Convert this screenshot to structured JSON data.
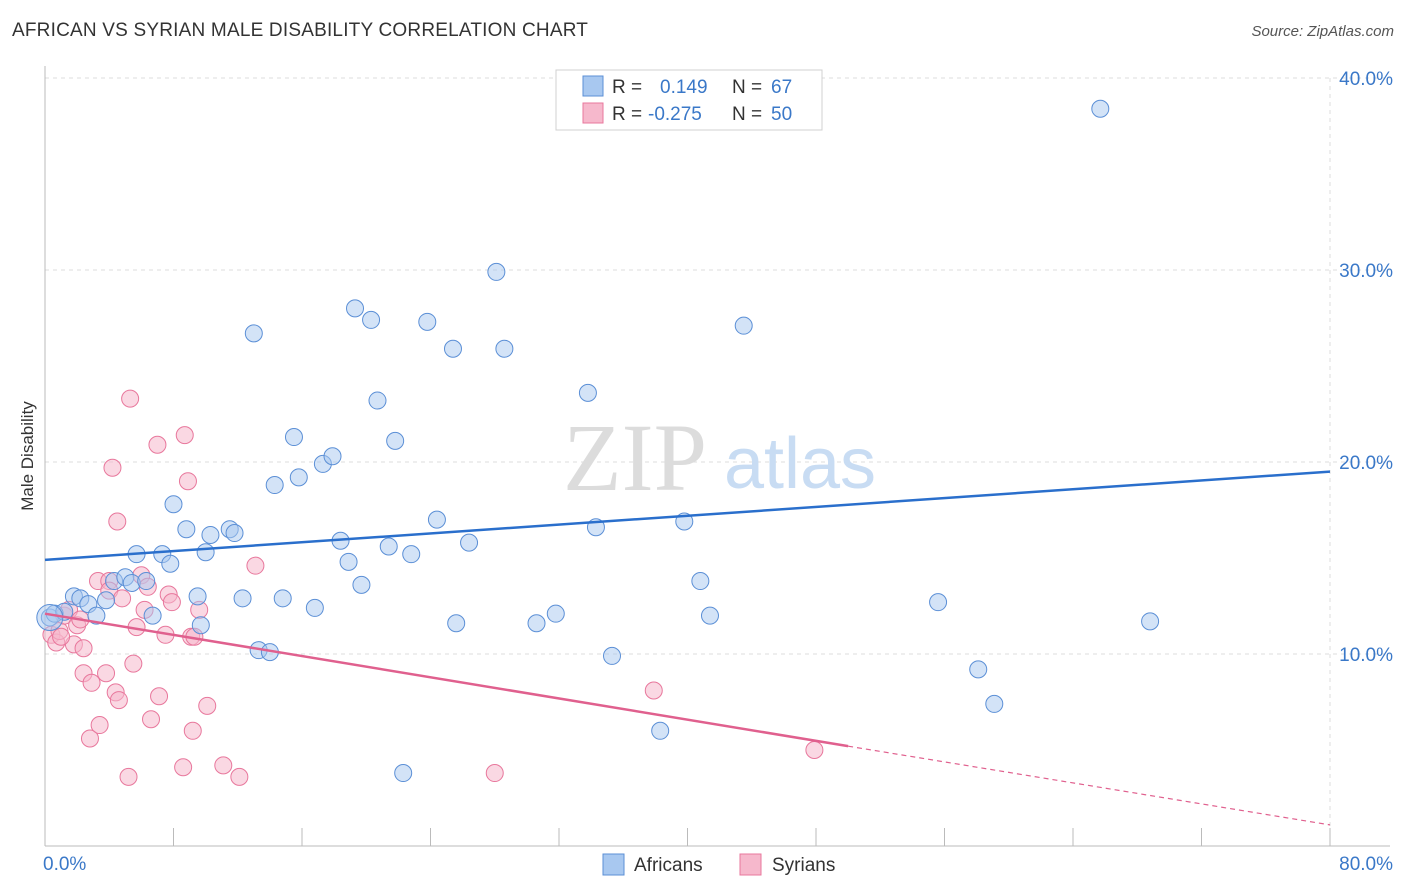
{
  "title": "AFRICAN VS SYRIAN MALE DISABILITY CORRELATION CHART",
  "source": "Source: ZipAtlas.com",
  "watermark": {
    "zip": "ZIP",
    "atlas": "atlas"
  },
  "legend_stats": [
    {
      "r_label": "R =",
      "r_value": "0.149",
      "n_label": "N =",
      "n_value": "67"
    },
    {
      "r_label": "R =",
      "r_value": "-0.275",
      "n_label": "N =",
      "n_value": "50"
    }
  ],
  "colors": {
    "africans_fill": "#a8c8f0",
    "africans_stroke": "#5b8fd6",
    "africans_line": "#2a6fcc",
    "syrians_fill": "#f6b8cc",
    "syrians_stroke": "#e8779c",
    "syrians_line": "#e0608e",
    "axis_text": "#3a78c8",
    "grid": "#dddddd"
  },
  "chart_data": {
    "type": "scatter",
    "title": "AFRICAN VS SYRIAN MALE DISABILITY CORRELATION CHART",
    "xlabel": "",
    "ylabel": "Male Disability",
    "xlim": [
      0,
      80
    ],
    "ylim": [
      0,
      40
    ],
    "x_tick_labels": [
      "0.0%",
      "80.0%"
    ],
    "y_ticks": [
      10,
      20,
      30,
      40
    ],
    "y_tick_labels": [
      "10.0%",
      "20.0%",
      "30.0%",
      "40.0%"
    ],
    "grid": true,
    "legend_position": "bottom-center",
    "series": [
      {
        "name": "Africans",
        "r": 0.149,
        "n": 67,
        "trend": {
          "x": [
            0,
            80
          ],
          "y": [
            14.9,
            19.5
          ]
        },
        "points": [
          [
            0.3,
            11.9
          ],
          [
            0.6,
            12.1
          ],
          [
            1.2,
            12.2
          ],
          [
            1.8,
            13.0
          ],
          [
            2.2,
            12.9
          ],
          [
            2.7,
            12.6
          ],
          [
            3.2,
            12.0
          ],
          [
            3.8,
            12.8
          ],
          [
            4.3,
            13.8
          ],
          [
            5.0,
            14.0
          ],
          [
            5.4,
            13.7
          ],
          [
            5.7,
            15.2
          ],
          [
            6.3,
            13.8
          ],
          [
            6.7,
            12.0
          ],
          [
            7.3,
            15.2
          ],
          [
            7.8,
            14.7
          ],
          [
            8.0,
            17.8
          ],
          [
            8.8,
            16.5
          ],
          [
            9.5,
            13.0
          ],
          [
            9.7,
            11.5
          ],
          [
            10.0,
            15.3
          ],
          [
            10.3,
            16.2
          ],
          [
            11.5,
            16.5
          ],
          [
            11.8,
            16.3
          ],
          [
            12.3,
            12.9
          ],
          [
            13.0,
            26.7
          ],
          [
            13.3,
            10.2
          ],
          [
            14.0,
            10.1
          ],
          [
            14.3,
            18.8
          ],
          [
            14.8,
            12.9
          ],
          [
            15.5,
            21.3
          ],
          [
            15.8,
            19.2
          ],
          [
            16.8,
            12.4
          ],
          [
            17.3,
            19.9
          ],
          [
            17.9,
            20.3
          ],
          [
            18.4,
            15.9
          ],
          [
            18.9,
            14.8
          ],
          [
            19.3,
            28.0
          ],
          [
            19.7,
            13.6
          ],
          [
            20.3,
            27.4
          ],
          [
            20.7,
            23.2
          ],
          [
            21.4,
            15.6
          ],
          [
            21.8,
            21.1
          ],
          [
            22.8,
            15.2
          ],
          [
            23.8,
            27.3
          ],
          [
            24.4,
            17.0
          ],
          [
            25.4,
            25.9
          ],
          [
            25.6,
            11.6
          ],
          [
            26.4,
            15.8
          ],
          [
            28.1,
            29.9
          ],
          [
            28.6,
            25.9
          ],
          [
            30.6,
            11.6
          ],
          [
            31.8,
            12.1
          ],
          [
            33.8,
            23.6
          ],
          [
            34.3,
            16.6
          ],
          [
            35.3,
            9.9
          ],
          [
            38.3,
            6.0
          ],
          [
            39.8,
            16.9
          ],
          [
            40.8,
            13.8
          ],
          [
            41.4,
            12.0
          ],
          [
            43.5,
            27.1
          ],
          [
            55.6,
            12.7
          ],
          [
            58.1,
            9.2
          ],
          [
            59.1,
            7.4
          ],
          [
            65.7,
            38.4
          ],
          [
            68.8,
            11.7
          ],
          [
            22.3,
            3.8
          ]
        ]
      },
      {
        "name": "Syrians",
        "r": -0.275,
        "n": 50,
        "trend": {
          "x": [
            0,
            50
          ],
          "y": [
            12.1,
            5.2
          ]
        },
        "trend_dashed": {
          "x": [
            50,
            80
          ],
          "y": [
            5.2,
            1.1
          ]
        },
        "points": [
          [
            0.4,
            11.0
          ],
          [
            0.7,
            10.6
          ],
          [
            0.9,
            11.2
          ],
          [
            1.2,
            12.0
          ],
          [
            1.5,
            12.3
          ],
          [
            1.8,
            10.5
          ],
          [
            2.0,
            11.5
          ],
          [
            2.2,
            11.8
          ],
          [
            2.4,
            10.3
          ],
          [
            2.4,
            9.0
          ],
          [
            2.8,
            5.6
          ],
          [
            2.9,
            8.5
          ],
          [
            3.3,
            13.8
          ],
          [
            3.4,
            6.3
          ],
          [
            3.8,
            9.0
          ],
          [
            4.0,
            13.8
          ],
          [
            4.0,
            13.3
          ],
          [
            4.2,
            19.7
          ],
          [
            4.4,
            8.0
          ],
          [
            4.5,
            16.9
          ],
          [
            4.6,
            7.6
          ],
          [
            4.8,
            12.9
          ],
          [
            5.2,
            3.6
          ],
          [
            5.3,
            23.3
          ],
          [
            5.5,
            9.5
          ],
          [
            5.7,
            11.4
          ],
          [
            6.0,
            14.1
          ],
          [
            6.2,
            12.3
          ],
          [
            6.4,
            13.5
          ],
          [
            6.6,
            6.6
          ],
          [
            7.0,
            20.9
          ],
          [
            7.1,
            7.8
          ],
          [
            7.5,
            11.0
          ],
          [
            7.7,
            13.1
          ],
          [
            7.9,
            12.7
          ],
          [
            8.6,
            4.1
          ],
          [
            8.7,
            21.4
          ],
          [
            8.9,
            19.0
          ],
          [
            9.1,
            10.9
          ],
          [
            9.2,
            6.0
          ],
          [
            9.6,
            12.3
          ],
          [
            10.1,
            7.3
          ],
          [
            11.1,
            4.2
          ],
          [
            12.1,
            3.6
          ],
          [
            13.1,
            14.6
          ],
          [
            28.0,
            3.8
          ],
          [
            37.9,
            8.1
          ],
          [
            47.9,
            5.0
          ],
          [
            9.3,
            10.9
          ],
          [
            1.0,
            10.9
          ]
        ]
      }
    ]
  }
}
